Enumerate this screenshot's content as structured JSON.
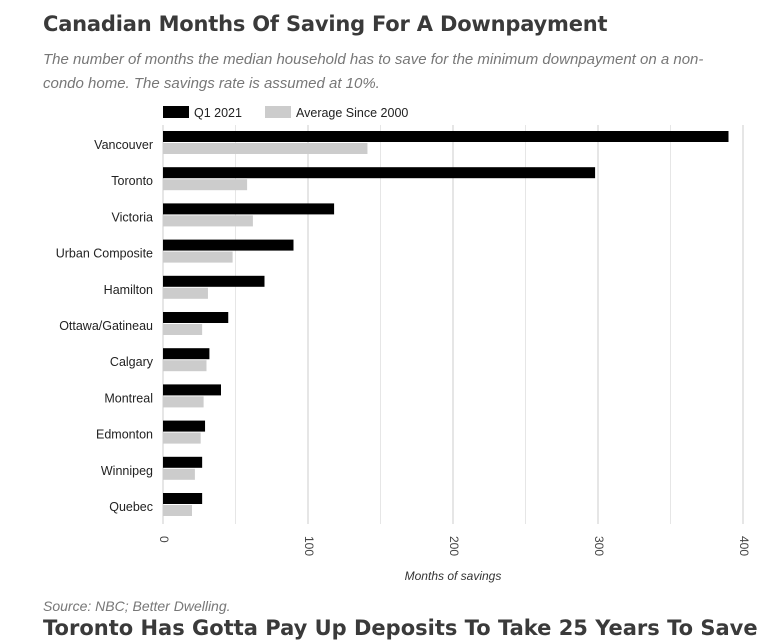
{
  "header": {
    "title": "Canadian Months Of Saving For A Downpayment",
    "subtitle": "The number of months the median household has to save for the minimum downpayment on a non-condo home. The savings rate is assumed at 10%."
  },
  "footer": {
    "source": "Source: NBC; Better Dwelling.",
    "next_heading": "Toronto Has Gotta Pay Up Deposits To Take 25 Years To Save"
  },
  "chart_data": {
    "type": "bar",
    "orientation": "horizontal",
    "categories": [
      "Vancouver",
      "Toronto",
      "Victoria",
      "Urban Composite",
      "Hamilton",
      "Ottawa/Gatineau",
      "Calgary",
      "Montreal",
      "Edmonton",
      "Winnipeg",
      "Quebec"
    ],
    "series": [
      {
        "name": "Q1 2021",
        "color": "#000000",
        "values": [
          390,
          298,
          118,
          90,
          70,
          45,
          32,
          40,
          29,
          27,
          27
        ]
      },
      {
        "name": "Average Since 2000",
        "color": "#cccccc",
        "values": [
          141,
          58,
          62,
          48,
          31,
          27,
          30,
          28,
          26,
          22,
          20
        ]
      }
    ],
    "xlabel": "Months of savings",
    "ylabel": "",
    "xlim": [
      0,
      400
    ],
    "xticks": [
      0,
      100,
      200,
      300,
      400
    ],
    "grid": true,
    "legend": "top-left"
  }
}
